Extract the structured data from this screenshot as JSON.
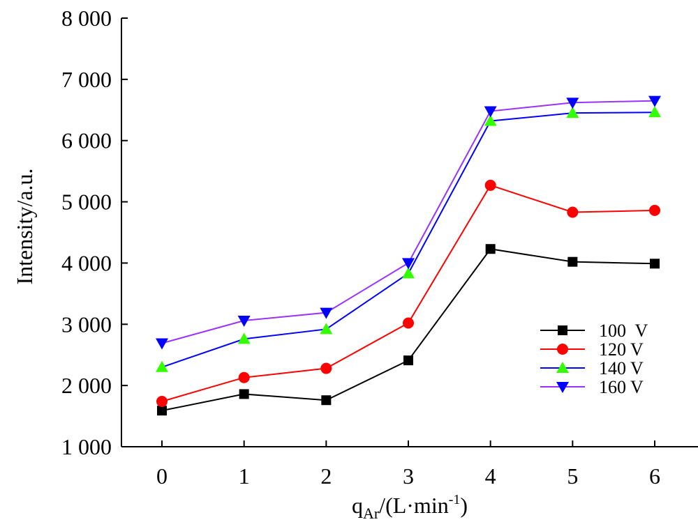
{
  "chart_data": {
    "type": "line",
    "xlabel": "q",
    "xlabel_sub": "Ar",
    "xlabel_units": "/(L·min",
    "xlabel_sup": "-1",
    "xlabel_close": ")",
    "ylabel": "Intensity/a.u.",
    "x": [
      0,
      1,
      2,
      3,
      4,
      5,
      6
    ],
    "xlim": [
      -0.5,
      6.5
    ],
    "ylim": [
      1000,
      8000
    ],
    "xticks": [
      "0",
      "1",
      "2",
      "3",
      "4",
      "5",
      "6"
    ],
    "yticks": [
      "1 000",
      "2 000",
      "3 000",
      "4 000",
      "5 000",
      "6 000",
      "7 000",
      "8 000"
    ],
    "ytick_values": [
      1000,
      2000,
      3000,
      4000,
      5000,
      6000,
      7000,
      8000
    ],
    "grid": false,
    "legend_position": "right",
    "series": [
      {
        "name": "100  V",
        "color": "#000000",
        "marker": "square",
        "values": [
          1590,
          1860,
          1760,
          2410,
          4230,
          4020,
          3990
        ]
      },
      {
        "name": "120 V",
        "color": "#ff0000",
        "marker": "circle",
        "values": [
          1740,
          2130,
          2280,
          3020,
          5270,
          4830,
          4860
        ]
      },
      {
        "name": "140 V",
        "color": "#0000ff",
        "marker": "triangle-up",
        "marker_color": "#33ff00",
        "values": [
          2300,
          2760,
          2920,
          3830,
          6320,
          6450,
          6460
        ]
      },
      {
        "name": "160 V",
        "color": "#9b30ff",
        "marker": "triangle-down",
        "marker_color": "#0000ff",
        "values": [
          2690,
          3060,
          3190,
          4000,
          6480,
          6620,
          6650
        ]
      }
    ]
  }
}
